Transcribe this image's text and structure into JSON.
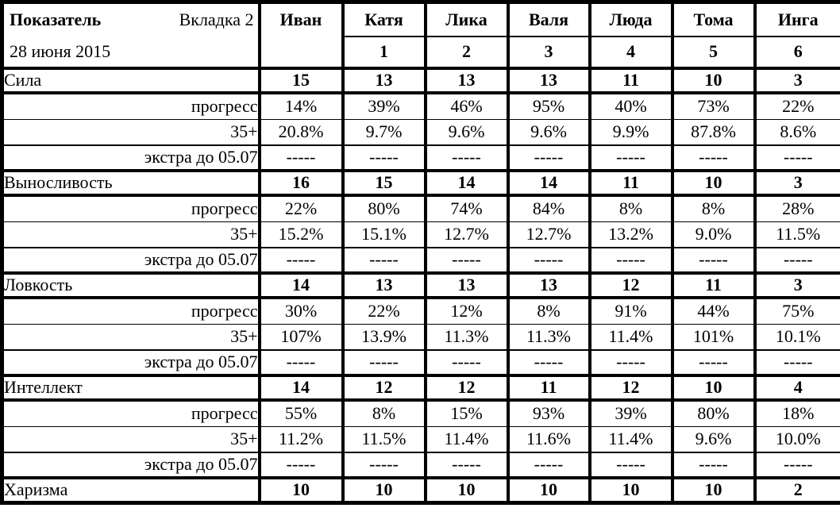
{
  "header": {
    "title": "Показатель",
    "tab": "Вкладка 2",
    "date": "28 июня 2015",
    "columns": [
      {
        "name": "Иван"
      },
      {
        "name": "Катя",
        "number": "1"
      },
      {
        "name": "Лика",
        "number": "2"
      },
      {
        "name": "Валя",
        "number": "3"
      },
      {
        "name": "Люда",
        "number": "4"
      },
      {
        "name": "Тома",
        "number": "5"
      },
      {
        "name": "Инга",
        "number": "6"
      }
    ]
  },
  "labels": {
    "progress": "прогресс",
    "plus35": "35+",
    "extra": "экстра до 05.07"
  },
  "blocks": [
    {
      "name": "Сила",
      "values": [
        "15",
        "13",
        "13",
        "13",
        "11",
        "10",
        "3"
      ],
      "progress": [
        "14%",
        "39%",
        "46%",
        "95%",
        "40%",
        "73%",
        "22%"
      ],
      "plus35": [
        "20.8%",
        "9.7%",
        "9.6%",
        "9.6%",
        "9.9%",
        "87.8%",
        "8.6%"
      ],
      "extra": [
        "-----",
        "-----",
        "-----",
        "-----",
        "-----",
        "-----",
        "-----"
      ]
    },
    {
      "name": "Выносливость",
      "values": [
        "16",
        "15",
        "14",
        "14",
        "11",
        "10",
        "3"
      ],
      "progress": [
        "22%",
        "80%",
        "74%",
        "84%",
        "8%",
        "8%",
        "28%"
      ],
      "plus35": [
        "15.2%",
        "15.1%",
        "12.7%",
        "12.7%",
        "13.2%",
        "9.0%",
        "11.5%"
      ],
      "extra": [
        "-----",
        "-----",
        "-----",
        "-----",
        "-----",
        "-----",
        "-----"
      ]
    },
    {
      "name": "Ловкость",
      "values": [
        "14",
        "13",
        "13",
        "13",
        "12",
        "11",
        "3"
      ],
      "progress": [
        "30%",
        "22%",
        "12%",
        "8%",
        "91%",
        "44%",
        "75%"
      ],
      "plus35": [
        "107%",
        "13.9%",
        "11.3%",
        "11.3%",
        "11.4%",
        "101%",
        "10.1%"
      ],
      "extra": [
        "-----",
        "-----",
        "-----",
        "-----",
        "-----",
        "-----",
        "-----"
      ]
    },
    {
      "name": "Интеллект",
      "values": [
        "14",
        "12",
        "12",
        "11",
        "12",
        "10",
        "4"
      ],
      "progress": [
        "55%",
        "8%",
        "15%",
        "93%",
        "39%",
        "80%",
        "18%"
      ],
      "plus35": [
        "11.2%",
        "11.5%",
        "11.4%",
        "11.6%",
        "11.4%",
        "9.6%",
        "10.0%"
      ],
      "extra": [
        "-----",
        "-----",
        "-----",
        "-----",
        "-----",
        "-----",
        "-----"
      ]
    },
    {
      "name": "Харизма",
      "values": [
        "10",
        "10",
        "10",
        "10",
        "10",
        "10",
        "2"
      ]
    }
  ],
  "colors": {
    "border": "#000000",
    "background": "#ffffff",
    "text": "#000000"
  }
}
